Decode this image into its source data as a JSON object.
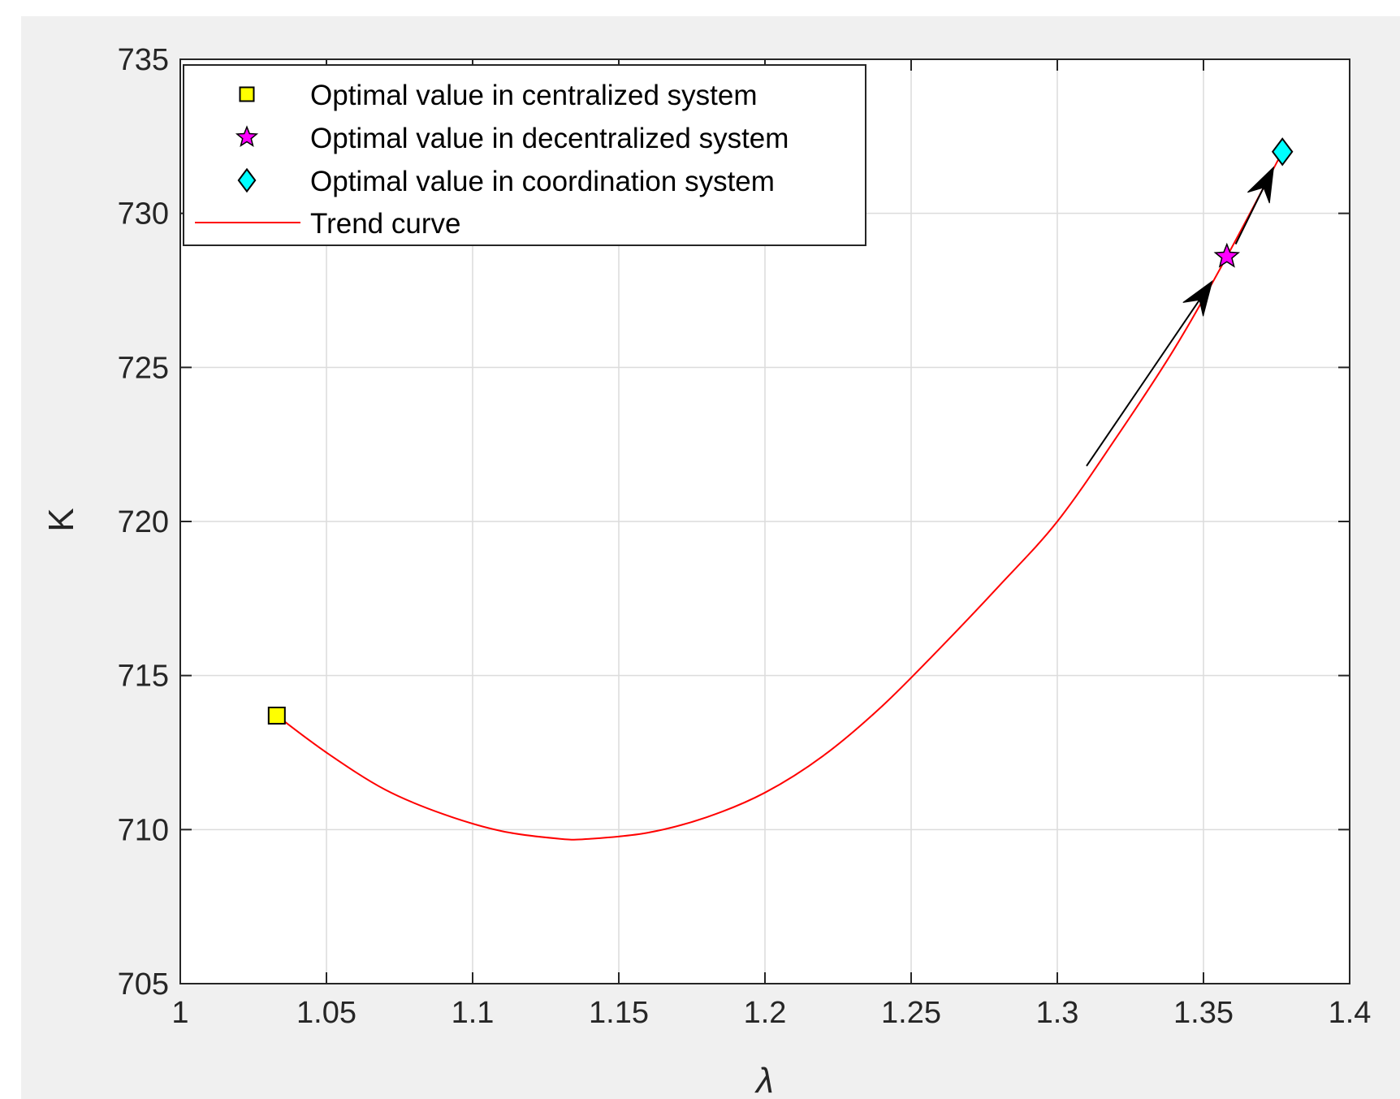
{
  "chart_data": {
    "type": "line",
    "title": "",
    "xlabel": "λ",
    "ylabel": "K",
    "xlim": [
      1,
      1.4
    ],
    "ylim": [
      705,
      735
    ],
    "x_ticks": [
      "1",
      "1.05",
      "1.1",
      "1.15",
      "1.2",
      "1.25",
      "1.3",
      "1.35",
      "1.4"
    ],
    "y_ticks": [
      "705",
      "710",
      "715",
      "720",
      "725",
      "730",
      "735"
    ],
    "grid": true,
    "legend_position": "top-left",
    "series": [
      {
        "name": "Optimal value in centralized system",
        "kind": "marker",
        "marker": "square",
        "color": "#ffff00",
        "points": [
          {
            "x": 1.033,
            "y": 713.7
          }
        ]
      },
      {
        "name": "Optimal value in decentralized system",
        "kind": "marker",
        "marker": "star",
        "color": "#ff00ff",
        "points": [
          {
            "x": 1.358,
            "y": 728.6
          }
        ]
      },
      {
        "name": "Optimal value in coordination system",
        "kind": "marker",
        "marker": "diamond",
        "color": "#00ffff",
        "points": [
          {
            "x": 1.377,
            "y": 732.0
          }
        ]
      },
      {
        "name": "Trend curve",
        "kind": "line",
        "color": "#ff0000",
        "x": [
          1.033,
          1.05,
          1.07,
          1.09,
          1.11,
          1.13,
          1.14,
          1.16,
          1.18,
          1.2,
          1.22,
          1.24,
          1.26,
          1.28,
          1.3,
          1.32,
          1.34,
          1.358,
          1.377
        ],
        "y": [
          713.7,
          712.5,
          711.3,
          710.5,
          709.95,
          709.7,
          709.7,
          709.9,
          710.4,
          711.2,
          712.4,
          714.0,
          715.9,
          717.9,
          720.0,
          722.7,
          725.6,
          728.6,
          732.0
        ]
      }
    ],
    "annotations": [
      {
        "type": "arrow",
        "color": "#000000",
        "from": {
          "x": 1.31,
          "y": 721.8
        },
        "to": {
          "x": 1.353,
          "y": 727.8
        }
      },
      {
        "type": "arrow",
        "color": "#000000",
        "from": {
          "x": 1.361,
          "y": 729.0
        },
        "to": {
          "x": 1.374,
          "y": 731.5
        }
      }
    ]
  }
}
